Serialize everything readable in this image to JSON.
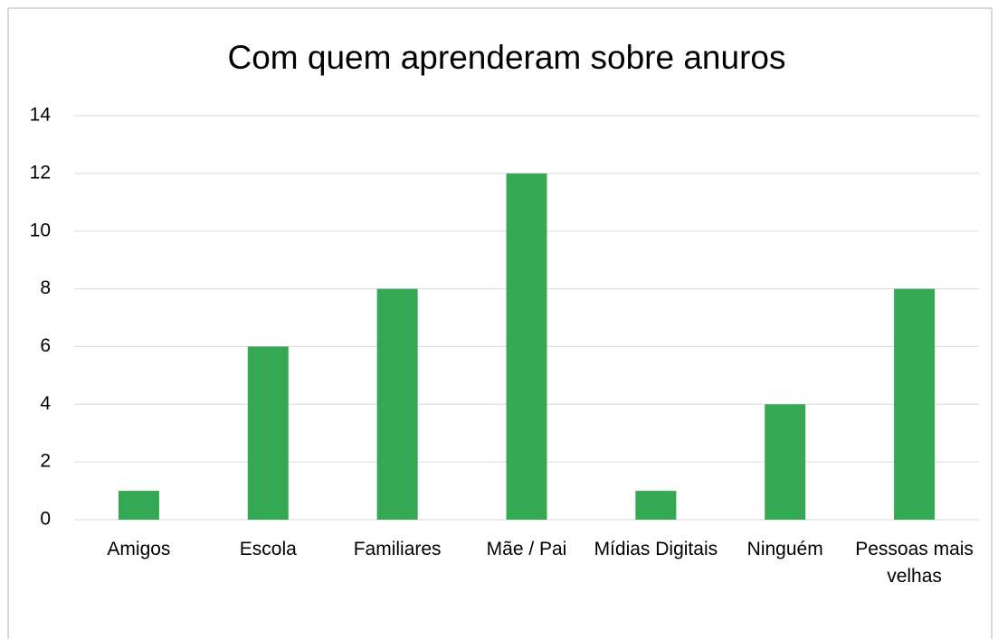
{
  "chart_data": {
    "type": "bar",
    "title": "Com quem aprenderam sobre anuros",
    "categories": [
      "Amigos",
      "Escola",
      "Familiares",
      "Mãe / Pai",
      "Mídias Digitais",
      "Ninguém",
      "Pessoas mais velhas"
    ],
    "values": [
      1,
      6,
      8,
      12,
      1,
      4,
      8
    ],
    "color": "#34a853",
    "ylim": [
      0,
      14
    ],
    "yticks": [
      0,
      2,
      4,
      6,
      8,
      10,
      12,
      14
    ],
    "grid": true
  }
}
